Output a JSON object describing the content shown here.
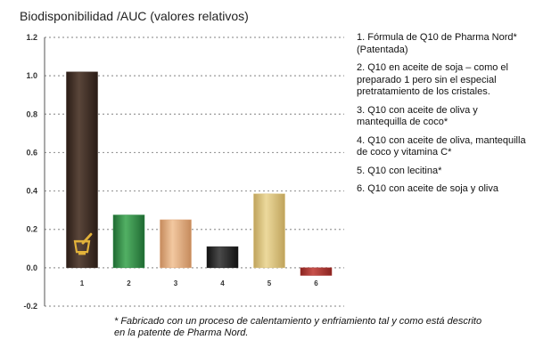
{
  "chart_data": {
    "type": "bar",
    "title": "Biodisponibilidad /AUC (valores relativos)",
    "categories": [
      "1",
      "2",
      "3",
      "4",
      "5",
      "6"
    ],
    "values": [
      1.02,
      0.275,
      0.25,
      0.11,
      0.385,
      -0.04
    ],
    "ylim": [
      -0.2,
      1.2
    ],
    "yticks": [
      1.2,
      1.0,
      0.8,
      0.6,
      0.4,
      0.2,
      0.0,
      -0.2
    ],
    "ytick_labels": [
      "1.2",
      "1.0",
      "0.8",
      "0.6",
      "0.4",
      "0.2",
      "0.0",
      "-0.2"
    ],
    "grid": true,
    "legend_position": "right",
    "bar_colors": [
      "#3a2a22",
      "#2f8a44",
      "#e0a578",
      "#222222",
      "#d8c07a",
      "#a8322e"
    ],
    "legend": [
      "1. Fórmula de Q10 de Pharma Nord* (Patentada)",
      "2. Q10 en aceite de soja – como el preparado 1 pero sin el especial pretratamiento de los cristales.",
      "3. Q10 con aceite de oliva y mantequilla de coco*",
      "4. Q10 con aceite de oliva, mantequilla de coco y vitamina C*",
      "5. Q10 con lecitina*",
      "6. Q10 con aceite de soja y oliva"
    ],
    "footnote": "* Fabricado con un proceso de calentamiento y enfriamiento tal y como está descrito en la patente de Pharma Nord.",
    "icon": "mortar-pestle-icon",
    "icon_color": "#e2b23a"
  }
}
